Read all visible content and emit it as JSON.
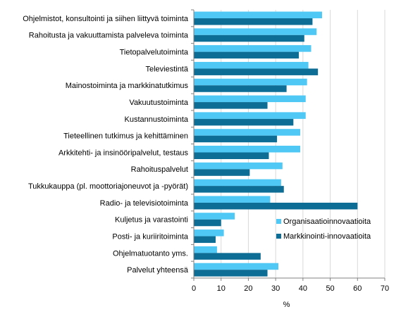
{
  "chart_data": {
    "type": "bar",
    "orientation": "horizontal",
    "categories": [
      "Ohjelmistot, konsultointi ja siihen liittyvä toiminta",
      "Rahoitusta ja vakuuttamista palveleva toiminta",
      "Tietopalvelutoiminta",
      "Televiestintä",
      "Mainostoiminta ja markkinatutkimus",
      "Vakuutustoiminta",
      "Kustannustoiminta",
      "Tieteellinen tutkimus ja kehittäminen",
      "Arkkitehti- ja insinööripalvelut, testaus",
      "Rahoituspalvelut",
      "Tukkukauppa (pl. moottoriajoneuvot ja -pyörät)",
      "Radio- ja televisiotoiminta",
      "Kuljetus ja varastointi",
      "Posti- ja kuriiritoiminta",
      "Ohjelmatuotanto yms.",
      "Palvelut yhteensä"
    ],
    "series": [
      {
        "name": "Organisaatioinnovaatioita",
        "color": "#4fc8f5",
        "values": [
          47,
          45,
          43,
          42,
          41.5,
          41,
          41,
          39,
          39,
          32.5,
          32,
          28,
          15,
          11,
          8.5,
          31
        ]
      },
      {
        "name": "Markkinointi-innovaatioita",
        "color": "#0d6d95",
        "values": [
          43.5,
          40.5,
          38.5,
          45.5,
          34,
          27,
          36.5,
          30.5,
          27.5,
          20.5,
          33,
          60,
          10,
          8,
          24.5,
          27
        ]
      }
    ],
    "xlabel": "%",
    "ylabel": "",
    "xlim": [
      0,
      70
    ],
    "xticks": [
      0,
      10,
      20,
      30,
      40,
      50,
      60,
      70
    ],
    "grid": true,
    "legend_position": "lower-right-inside"
  }
}
